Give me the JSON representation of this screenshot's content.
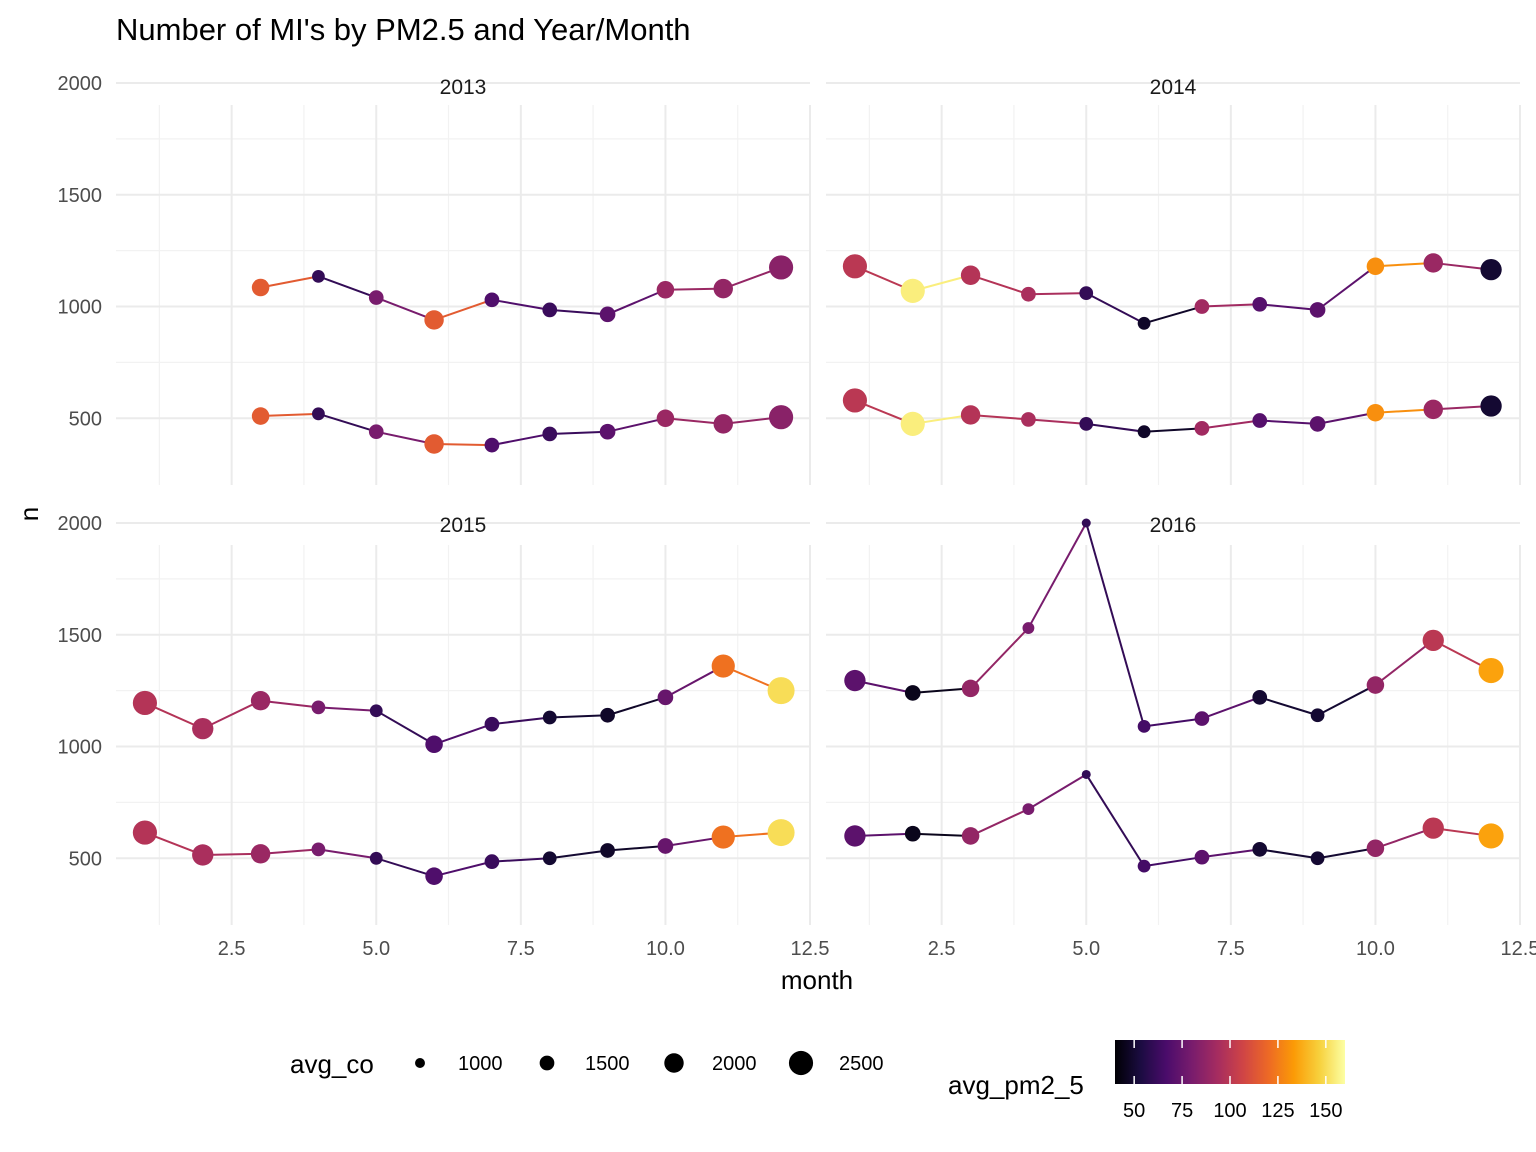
{
  "chart_data": {
    "type": "line",
    "title": "Number of MI's by PM2.5 and Year/Month",
    "xlabel": "month",
    "ylabel": "n",
    "xlim": [
      0.5,
      12.5
    ],
    "ylim": [
      300,
      2000
    ],
    "x_ticks": [
      2.5,
      5.0,
      7.5,
      10.0,
      12.5
    ],
    "x_tick_labels": [
      "2.5",
      "5.0",
      "7.5",
      "10.0",
      "12.5"
    ],
    "y_ticks": [
      500,
      1000,
      1500,
      2000
    ],
    "y_tick_labels": [
      "500",
      "1000",
      "1500",
      "2000"
    ],
    "grid": true,
    "legend_position": "bottom",
    "size_legend": {
      "title": "avg_co",
      "values": [
        1000,
        1500,
        2000,
        2500
      ],
      "labels": [
        "1000",
        "1500",
        "2000",
        "2500"
      ]
    },
    "color_legend": {
      "title": "avg_pm2_5",
      "range": [
        40,
        160
      ],
      "ticks": [
        50,
        75,
        100,
        125,
        150
      ],
      "labels": [
        "50",
        "75",
        "100",
        "125",
        "150"
      ],
      "palette": [
        "#000004",
        "#1b0c41",
        "#4a0c6b",
        "#781c6d",
        "#a52c60",
        "#cf4446",
        "#ed6925",
        "#fb9b06",
        "#f7d13d",
        "#fcffa4"
      ]
    },
    "facets": [
      {
        "panel": "2013",
        "upper": {
          "x": [
            3,
            4,
            5,
            6,
            7,
            8,
            9,
            10,
            11,
            12
          ],
          "y": [
            1085,
            1135,
            1040,
            940,
            1030,
            985,
            965,
            1075,
            1080,
            1175
          ],
          "avg_co": [
            1800,
            1300,
            1500,
            2000,
            1500,
            1500,
            1600,
            1800,
            2000,
            2500
          ],
          "avg_pm2_5": [
            115,
            60,
            80,
            115,
            68,
            62,
            72,
            90,
            88,
            85
          ]
        },
        "lower": {
          "x": [
            3,
            4,
            5,
            6,
            7,
            8,
            9,
            10,
            11,
            12
          ],
          "y": [
            510,
            520,
            440,
            385,
            380,
            430,
            440,
            500,
            475,
            505
          ],
          "avg_co": [
            1800,
            1300,
            1500,
            2000,
            1500,
            1500,
            1600,
            1800,
            2000,
            2500
          ],
          "avg_pm2_5": [
            115,
            60,
            80,
            115,
            68,
            62,
            72,
            90,
            88,
            85
          ]
        }
      },
      {
        "panel": "2014",
        "upper": {
          "x": [
            1,
            2,
            3,
            4,
            5,
            6,
            7,
            8,
            9,
            10,
            11,
            12
          ],
          "y": [
            1180,
            1070,
            1140,
            1055,
            1060,
            925,
            1000,
            1010,
            985,
            1180,
            1195,
            1165
          ],
          "avg_co": [
            2500,
            2500,
            2000,
            1500,
            1400,
            1300,
            1500,
            1500,
            1600,
            1800,
            2000,
            2200
          ],
          "avg_pm2_5": [
            100,
            155,
            98,
            95,
            60,
            48,
            92,
            70,
            72,
            130,
            90,
            50
          ]
        },
        "lower": {
          "x": [
            1,
            2,
            3,
            4,
            5,
            6,
            7,
            8,
            9,
            10,
            11,
            12
          ],
          "y": [
            580,
            475,
            515,
            495,
            475,
            440,
            455,
            490,
            475,
            525,
            540,
            555
          ],
          "avg_co": [
            2500,
            2500,
            2000,
            1500,
            1400,
            1300,
            1500,
            1500,
            1600,
            1800,
            2000,
            2200
          ],
          "avg_pm2_5": [
            100,
            155,
            98,
            95,
            60,
            48,
            92,
            70,
            72,
            130,
            90,
            50
          ]
        }
      },
      {
        "panel": "2015",
        "upper": {
          "x": [
            1,
            2,
            3,
            4,
            5,
            6,
            7,
            8,
            9,
            10,
            11,
            12
          ],
          "y": [
            1195,
            1080,
            1205,
            1175,
            1160,
            1010,
            1100,
            1130,
            1140,
            1220,
            1360,
            1250
          ],
          "avg_co": [
            2500,
            2200,
            2000,
            1400,
            1300,
            1800,
            1500,
            1400,
            1500,
            1600,
            2400,
            2800
          ],
          "avg_pm2_5": [
            98,
            95,
            90,
            80,
            60,
            68,
            62,
            50,
            48,
            75,
            122,
            150
          ]
        },
        "lower": {
          "x": [
            1,
            2,
            3,
            4,
            5,
            6,
            7,
            8,
            9,
            10,
            11,
            12
          ],
          "y": [
            615,
            515,
            520,
            540,
            500,
            420,
            485,
            500,
            535,
            555,
            595,
            615
          ],
          "avg_co": [
            2500,
            2200,
            2000,
            1400,
            1300,
            1800,
            1500,
            1400,
            1500,
            1600,
            2400,
            2800
          ],
          "avg_pm2_5": [
            98,
            95,
            90,
            80,
            60,
            68,
            62,
            50,
            48,
            75,
            122,
            150
          ]
        }
      },
      {
        "panel": "2016",
        "upper": {
          "x": [
            1,
            2,
            3,
            4,
            5,
            6,
            7,
            8,
            9,
            10,
            11,
            12
          ],
          "y": [
            1295,
            1240,
            1260,
            1530,
            2000,
            1090,
            1125,
            1220,
            1140,
            1275,
            1475,
            1340
          ],
          "avg_co": [
            2200,
            1600,
            1800,
            1200,
            900,
            1300,
            1500,
            1500,
            1400,
            1800,
            2200,
            2600
          ],
          "avg_pm2_5": [
            72,
            45,
            88,
            80,
            60,
            65,
            72,
            50,
            50,
            88,
            100,
            135
          ]
        },
        "lower": {
          "x": [
            1,
            2,
            3,
            4,
            5,
            6,
            7,
            8,
            9,
            10,
            11,
            12
          ],
          "y": [
            600,
            610,
            600,
            720,
            875,
            465,
            505,
            540,
            500,
            545,
            635,
            600
          ],
          "avg_co": [
            2200,
            1600,
            1800,
            1200,
            900,
            1300,
            1500,
            1500,
            1400,
            1800,
            2200,
            2600
          ],
          "avg_pm2_5": [
            72,
            45,
            88,
            80,
            60,
            65,
            72,
            50,
            50,
            88,
            100,
            135
          ]
        }
      }
    ]
  }
}
